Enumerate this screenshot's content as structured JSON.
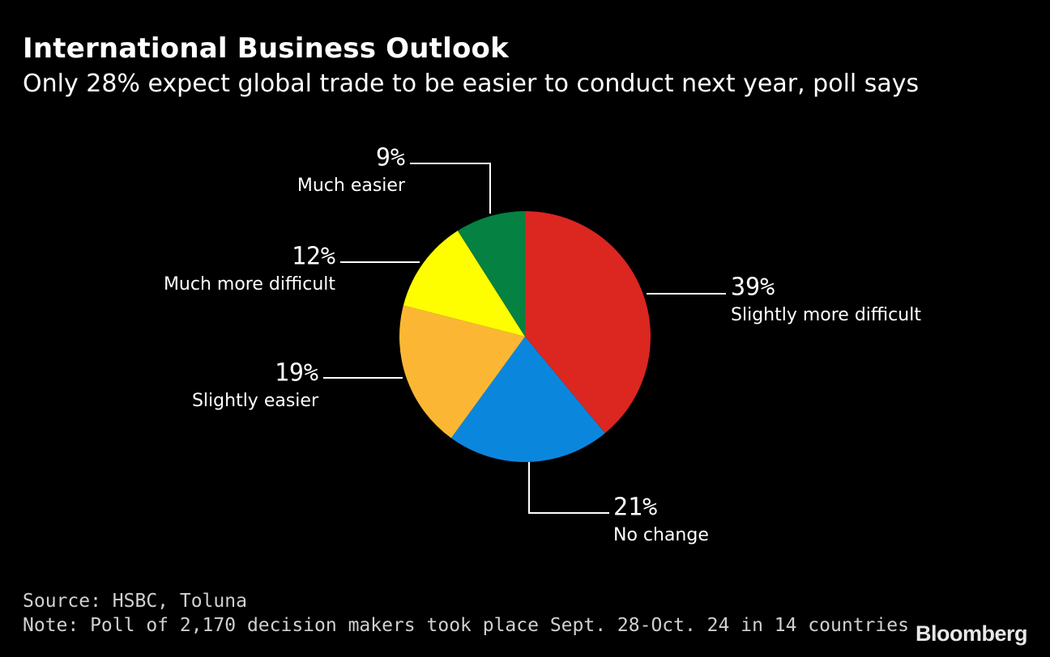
{
  "header": {
    "title": "International Business Outlook",
    "subtitle": "Only 28% expect global trade to be easier to conduct next year, poll says"
  },
  "chart_data": {
    "type": "pie",
    "title": "International Business Outlook",
    "subtitle": "Only 28% expect global trade to be easier to conduct next year, poll says",
    "slices": [
      {
        "label": "Slightly more difficult",
        "value": 39,
        "value_label": "39%",
        "color": "#dc2620"
      },
      {
        "label": "No change",
        "value": 21,
        "value_label": "21%",
        "color": "#0a87dd"
      },
      {
        "label": "Slightly easier",
        "value": 19,
        "value_label": "19%",
        "color": "#fbb734"
      },
      {
        "label": "Much more difficult",
        "value": 12,
        "value_label": "12%",
        "color": "#fefe00"
      },
      {
        "label": "Much easier",
        "value": 9,
        "value_label": "9%",
        "color": "#058141"
      }
    ]
  },
  "footer": {
    "source": "Source: HSBC, Toluna",
    "note": "Note: Poll of 2,170 decision makers took place Sept. 28-Oct. 24 in 14 countries",
    "brand": "Bloomberg"
  }
}
